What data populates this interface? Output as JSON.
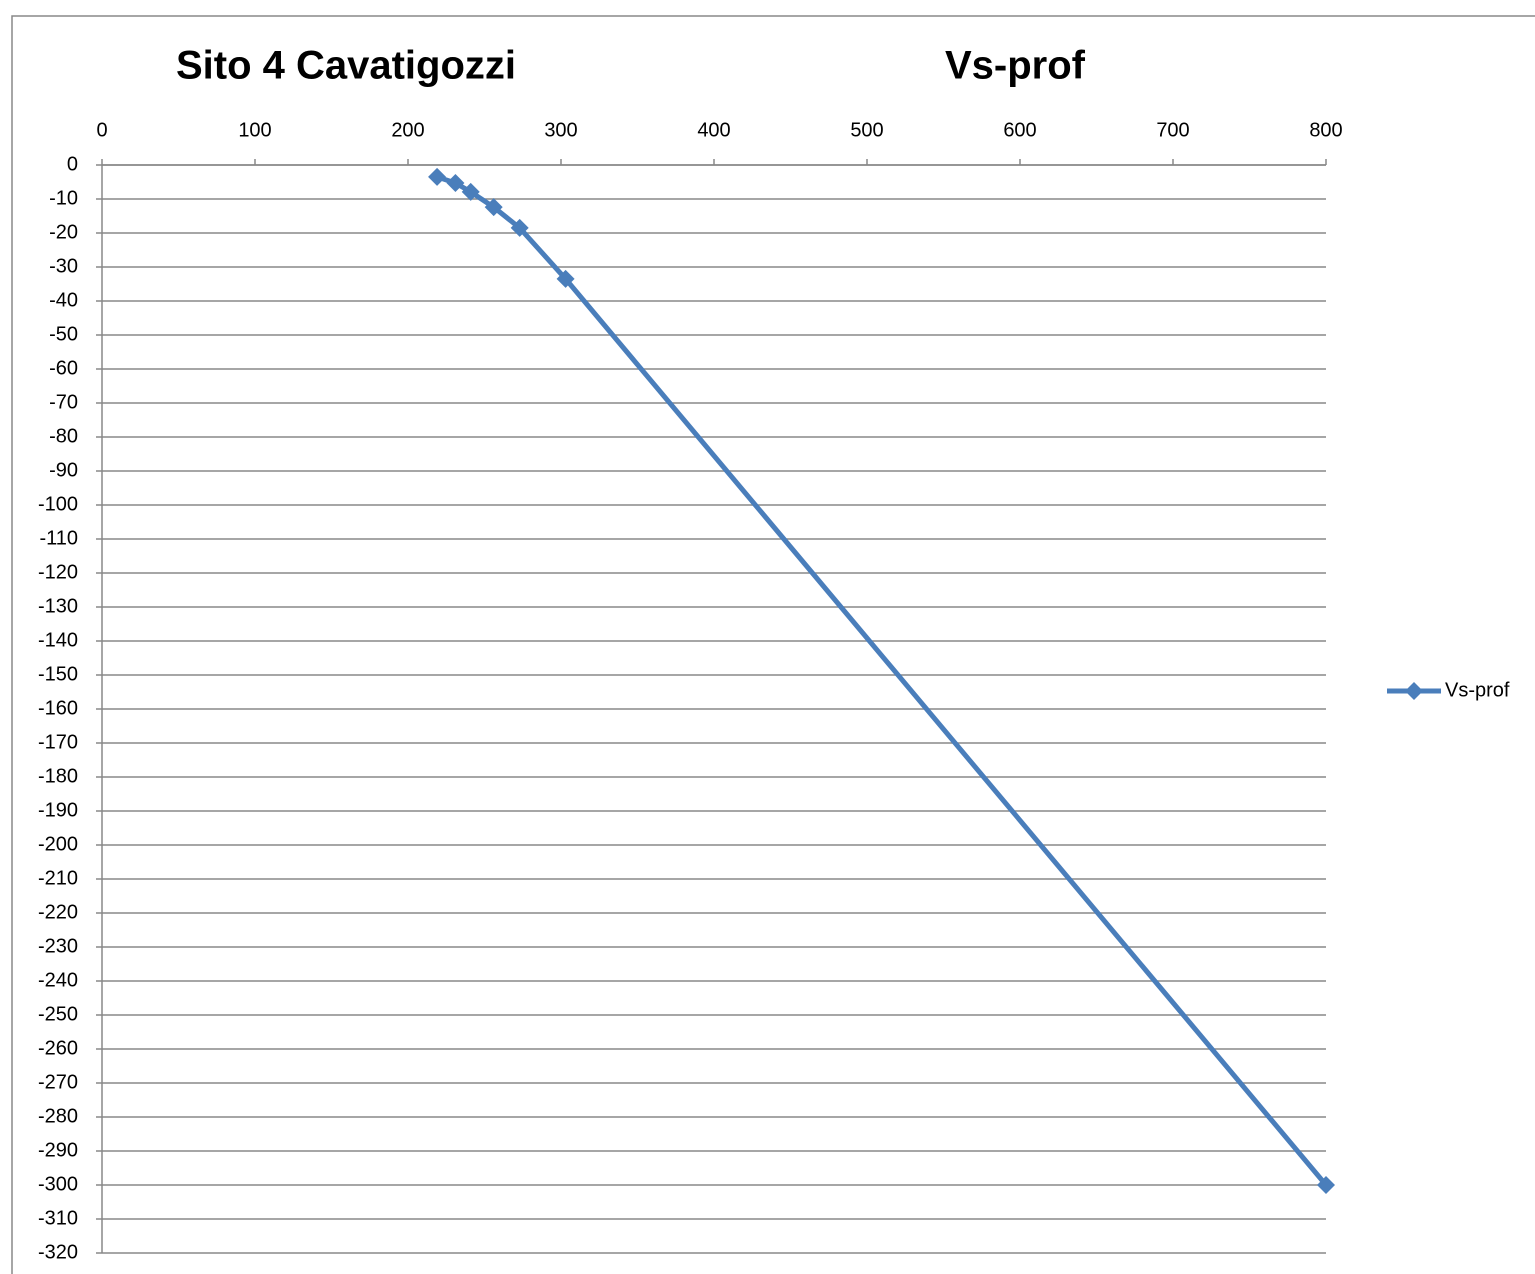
{
  "chart_data": {
    "type": "line",
    "title": "Vs-prof",
    "annotation": "Sito 4 Cavatigozzi",
    "x": [
      219,
      231,
      241,
      256,
      273,
      303,
      800
    ],
    "series": [
      {
        "name": "Vs-prof",
        "color": "#4a7ebb",
        "values": [
          -3.5,
          -5.3,
          -7.9,
          -12.4,
          -18.5,
          -33.5,
          -300
        ]
      }
    ],
    "xlim": [
      0,
      800
    ],
    "xticks": [
      0,
      100,
      200,
      300,
      400,
      500,
      600,
      700,
      800
    ],
    "ylim": [
      -320,
      0
    ],
    "yticks": [
      0,
      -10,
      -20,
      -30,
      -40,
      -50,
      -60,
      -70,
      -80,
      -90,
      -100,
      -110,
      -120,
      -130,
      -140,
      -150,
      -160,
      -170,
      -180,
      -190,
      -200,
      -210,
      -220,
      -230,
      -240,
      -250,
      -260,
      -270,
      -280,
      -290,
      -300,
      -310,
      -320
    ],
    "grid": true,
    "legend": "right"
  }
}
